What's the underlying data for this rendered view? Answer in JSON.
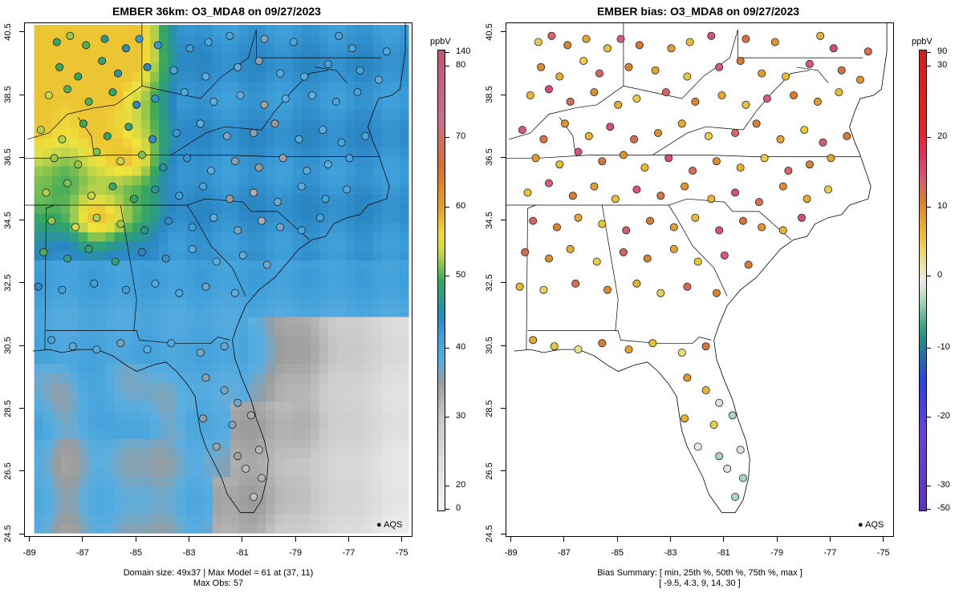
{
  "left_panel": {
    "title": "EMBER 36km: O3_MDA8 on 09/27/2023",
    "units": "ppbV",
    "colorbar_labels": [
      "140",
      "80",
      "70",
      "60",
      "50",
      "40",
      "30",
      "20",
      "0"
    ],
    "caption_line1": "Domain size: 49x37 | Max Model = 61 at (37, 11)",
    "caption_line2": "Max Obs: 57",
    "legend": "AQS"
  },
  "right_panel": {
    "title": "EMBER bias: O3_MDA8 on 09/27/2023",
    "units": "ppbV",
    "colorbar_labels": [
      "90",
      "30",
      "20",
      "10",
      "0",
      "-10",
      "-20",
      "-30",
      "-50"
    ],
    "caption_line1": "Bias Summary: [ min, 25th %, 50th %, 75th %, max ]",
    "caption_line2": "[ -9.5,   4.3,   9,   14,   30 ]",
    "legend": "AQS"
  },
  "axes": {
    "x_ticks": [
      "-89",
      "-87",
      "-85",
      "-83",
      "-81",
      "-79",
      "-77",
      "-75"
    ],
    "y_ticks": [
      "40.5",
      "38.5",
      "36.5",
      "34.5",
      "32.5",
      "30.5",
      "28.5",
      "26.5",
      "24.5"
    ]
  },
  "colors": {
    "model_scale": [
      "#f4f4f4",
      "#bdbdbd",
      "#8f8f8f",
      "#4ca9df",
      "#2b8ccc",
      "#22a37a",
      "#6cbf50",
      "#c9d84b",
      "#f2e23a",
      "#e9a62b",
      "#d77a2c",
      "#c96b8a",
      "#a22025"
    ],
    "bias_scale": [
      "#6a2fbf",
      "#2c3fe0",
      "#1f89c7",
      "#22a36e",
      "#e8e8e0",
      "#e8d44b",
      "#e6a02b",
      "#d36a35",
      "#d15a8a",
      "#e81f1f",
      "#9b1b20"
    ]
  },
  "map_data": {
    "lon_range": [
      -89.2,
      -74.6
    ],
    "lat_range": [
      24.4,
      40.8
    ],
    "sites": [
      [
        -88.0,
        40.2,
        52
      ],
      [
        -87.5,
        40.4,
        55
      ],
      [
        -86.9,
        40.1,
        50
      ],
      [
        -86.2,
        40.3,
        48
      ],
      [
        -85.4,
        40.0,
        44
      ],
      [
        -84.9,
        40.3,
        42
      ],
      [
        -84.2,
        40.1,
        40
      ],
      [
        -83.0,
        40.0,
        37
      ],
      [
        -82.3,
        40.2,
        36
      ],
      [
        -81.5,
        40.4,
        35
      ],
      [
        -80.2,
        40.3,
        33
      ],
      [
        -79.1,
        40.2,
        36
      ],
      [
        -77.4,
        40.4,
        35
      ],
      [
        -76.9,
        40.0,
        37
      ],
      [
        -75.6,
        39.9,
        35
      ],
      [
        -87.9,
        39.4,
        53
      ],
      [
        -87.2,
        39.1,
        50
      ],
      [
        -86.3,
        39.6,
        47
      ],
      [
        -85.7,
        39.2,
        46
      ],
      [
        -84.6,
        39.4,
        42
      ],
      [
        -83.6,
        39.3,
        38
      ],
      [
        -82.4,
        39.1,
        33
      ],
      [
        -81.2,
        39.4,
        30
      ],
      [
        -80.4,
        39.6,
        31
      ],
      [
        -79.6,
        39.2,
        34
      ],
      [
        -78.7,
        39.1,
        36
      ],
      [
        -77.8,
        39.5,
        37
      ],
      [
        -76.6,
        39.3,
        35
      ],
      [
        -75.9,
        39.0,
        33
      ],
      [
        -88.3,
        38.5,
        56
      ],
      [
        -87.6,
        38.7,
        54
      ],
      [
        -86.8,
        38.3,
        52
      ],
      [
        -85.9,
        38.6,
        48
      ],
      [
        -85.0,
        38.2,
        44
      ],
      [
        -84.3,
        38.4,
        40
      ],
      [
        -83.2,
        38.6,
        37
      ],
      [
        -82.1,
        38.3,
        33
      ],
      [
        -81.1,
        38.5,
        30
      ],
      [
        -80.2,
        38.2,
        29
      ],
      [
        -79.4,
        38.4,
        32
      ],
      [
        -78.4,
        38.5,
        35
      ],
      [
        -77.5,
        38.3,
        37
      ],
      [
        -76.7,
        38.6,
        36
      ],
      [
        -88.6,
        37.4,
        57
      ],
      [
        -87.8,
        37.1,
        55
      ],
      [
        -87.0,
        37.6,
        53
      ],
      [
        -86.1,
        37.2,
        50
      ],
      [
        -85.3,
        37.5,
        47
      ],
      [
        -84.4,
        37.1,
        43
      ],
      [
        -83.5,
        37.3,
        39
      ],
      [
        -82.6,
        37.6,
        35
      ],
      [
        -81.6,
        37.2,
        31
      ],
      [
        -80.6,
        37.3,
        28
      ],
      [
        -79.8,
        37.6,
        30
      ],
      [
        -78.9,
        37.1,
        33
      ],
      [
        -78.0,
        37.4,
        35
      ],
      [
        -77.3,
        37.0,
        36
      ],
      [
        -76.4,
        37.2,
        34
      ],
      [
        -88.1,
        36.5,
        56
      ],
      [
        -87.2,
        36.3,
        54
      ],
      [
        -86.5,
        36.7,
        56
      ],
      [
        -85.6,
        36.4,
        57
      ],
      [
        -84.8,
        36.6,
        52
      ],
      [
        -84.0,
        36.2,
        46
      ],
      [
        -83.1,
        36.5,
        40
      ],
      [
        -82.2,
        36.1,
        35
      ],
      [
        -81.3,
        36.4,
        30
      ],
      [
        -80.4,
        36.2,
        27
      ],
      [
        -79.5,
        36.5,
        29
      ],
      [
        -78.6,
        36.1,
        33
      ],
      [
        -77.8,
        36.3,
        35
      ],
      [
        -77.0,
        36.5,
        37
      ],
      [
        -88.4,
        35.4,
        54
      ],
      [
        -87.6,
        35.7,
        55
      ],
      [
        -86.7,
        35.3,
        56
      ],
      [
        -85.9,
        35.6,
        53
      ],
      [
        -85.1,
        35.2,
        50
      ],
      [
        -84.3,
        35.5,
        44
      ],
      [
        -83.4,
        35.3,
        40
      ],
      [
        -82.5,
        35.6,
        36
      ],
      [
        -81.5,
        35.2,
        31
      ],
      [
        -80.6,
        35.4,
        26
      ],
      [
        -79.7,
        35.1,
        30
      ],
      [
        -78.8,
        35.6,
        34
      ],
      [
        -77.9,
        35.2,
        37
      ],
      [
        -77.1,
        35.5,
        38
      ],
      [
        -88.2,
        34.5,
        55
      ],
      [
        -87.3,
        34.3,
        56
      ],
      [
        -86.5,
        34.6,
        57
      ],
      [
        -85.6,
        34.4,
        54
      ],
      [
        -84.7,
        34.2,
        48
      ],
      [
        -83.8,
        34.5,
        42
      ],
      [
        -82.9,
        34.3,
        37
      ],
      [
        -82.1,
        34.6,
        34
      ],
      [
        -81.2,
        34.2,
        30
      ],
      [
        -80.3,
        34.5,
        28
      ],
      [
        -79.6,
        34.3,
        31
      ],
      [
        -78.8,
        34.2,
        35
      ],
      [
        -78.1,
        34.6,
        38
      ],
      [
        -88.5,
        33.5,
        51
      ],
      [
        -87.6,
        33.3,
        50
      ],
      [
        -86.8,
        33.6,
        49
      ],
      [
        -85.8,
        33.2,
        47
      ],
      [
        -84.8,
        33.5,
        44
      ],
      [
        -83.9,
        33.3,
        40
      ],
      [
        -82.9,
        33.6,
        36
      ],
      [
        -82.0,
        33.2,
        33
      ],
      [
        -81.0,
        33.4,
        31
      ],
      [
        -80.1,
        33.1,
        33
      ],
      [
        -88.7,
        32.4,
        41
      ],
      [
        -87.8,
        32.3,
        40
      ],
      [
        -86.6,
        32.5,
        39
      ],
      [
        -85.4,
        32.3,
        37
      ],
      [
        -84.3,
        32.5,
        36
      ],
      [
        -83.4,
        32.2,
        35
      ],
      [
        -82.4,
        32.4,
        34
      ],
      [
        -81.3,
        32.2,
        33
      ],
      [
        -88.2,
        30.7,
        36
      ],
      [
        -87.4,
        30.5,
        35
      ],
      [
        -86.5,
        30.4,
        34
      ],
      [
        -85.6,
        30.6,
        33
      ],
      [
        -84.6,
        30.4,
        33
      ],
      [
        -83.7,
        30.6,
        33
      ],
      [
        -82.6,
        30.3,
        32
      ],
      [
        -81.7,
        30.5,
        31
      ],
      [
        -82.4,
        29.5,
        32
      ],
      [
        -81.7,
        29.1,
        31
      ],
      [
        -81.2,
        28.7,
        30
      ],
      [
        -82.5,
        28.2,
        31
      ],
      [
        -81.4,
        28.0,
        29
      ],
      [
        -80.7,
        28.3,
        28
      ],
      [
        -82.0,
        27.3,
        28
      ],
      [
        -81.2,
        27.0,
        26
      ],
      [
        -80.4,
        27.2,
        25
      ],
      [
        -80.3,
        26.3,
        24
      ],
      [
        -80.9,
        26.6,
        25
      ],
      [
        -80.6,
        25.7,
        23
      ]
    ]
  }
}
